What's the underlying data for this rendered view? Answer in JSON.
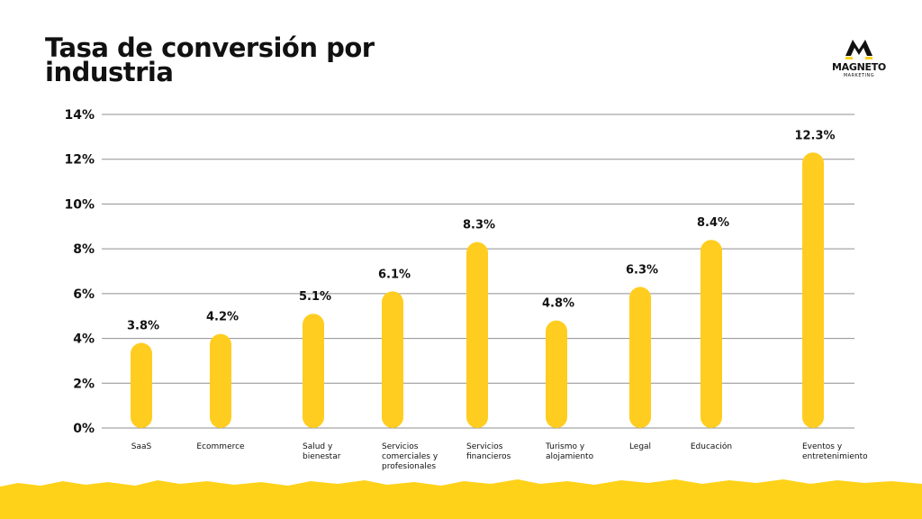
{
  "title": "Tasa de conversión por industria",
  "logo": {
    "name": "MAGNETO",
    "subtitle": "MARKETING"
  },
  "colors": {
    "bar": "#FFCD1F",
    "grid": "#8f8f8f",
    "text": "#111111",
    "wave": "#FFD21A"
  },
  "chart_data": {
    "type": "bar",
    "categories": [
      "SaaS",
      "Ecommerce",
      "Salud y bienestar",
      "Servicios comerciales y profesionales",
      "Servicios financieros",
      "Turismo y alojamiento",
      "Legal",
      "Educación",
      "Eventos y entretenimiento"
    ],
    "category_lines": [
      [
        "SaaS"
      ],
      [
        "Ecommerce"
      ],
      [
        "Salud y",
        "bienestar"
      ],
      [
        "Servicios",
        "comerciales y",
        "profesionales"
      ],
      [
        "Servicios",
        "financieros"
      ],
      [
        "Turismo y",
        "alojamiento"
      ],
      [
        "Legal"
      ],
      [
        "Educación"
      ],
      [
        "Eventos y",
        "entretenimiento"
      ]
    ],
    "values": [
      3.8,
      4.2,
      5.1,
      6.1,
      8.3,
      4.8,
      6.3,
      8.4,
      12.3
    ],
    "data_labels": [
      "3.8%",
      "4.2%",
      "5.1%",
      "6.1%",
      "8.3%",
      "4.8%",
      "6.3%",
      "8.4%",
      "12.3%"
    ],
    "y_ticks": [
      "0%",
      "2%",
      "4%",
      "6%",
      "8%",
      "10%",
      "12%",
      "14%"
    ],
    "ylim": [
      0,
      14
    ],
    "grid": true,
    "legend": "none"
  }
}
